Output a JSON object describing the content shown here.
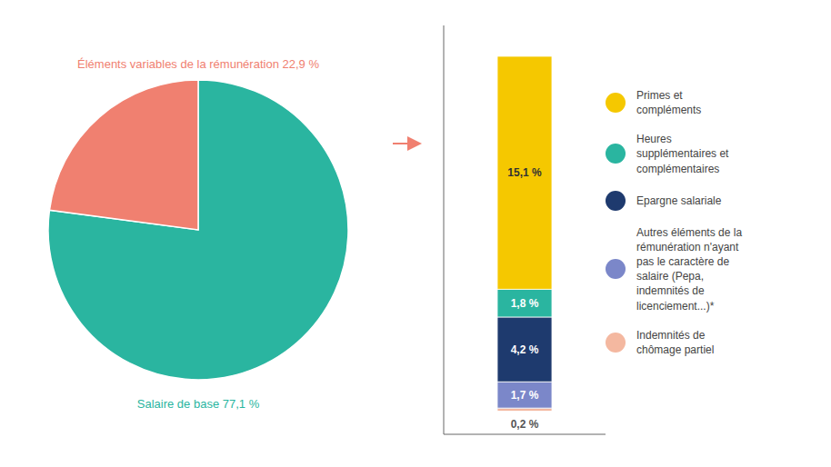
{
  "chart_data": [
    {
      "type": "pie",
      "values": [
        77.1,
        22.9
      ],
      "value_labels": [
        "Salaire de base 77,1 %",
        "Éléments variables de la rémunération 22,9 %"
      ],
      "colors": [
        "#2ab5a0",
        "#f08070"
      ],
      "data_labels": true
    },
    {
      "type": "bar",
      "stacked": true,
      "categories": [
        null
      ],
      "series": [
        {
          "name": "Primes et\ncompléments",
          "color": "#f5c800",
          "values": [
            15.1
          ],
          "value_labels": [
            "15,1 %"
          ]
        },
        {
          "name": "Heures\nsupplémentaires et\ncomplémentaires",
          "color": "#2ab5a0",
          "values": [
            1.8
          ],
          "value_labels": [
            "1,8 %"
          ]
        },
        {
          "name": "Epargne salariale",
          "color": "#1e3a6e",
          "values": [
            4.2
          ],
          "value_labels": [
            "4,2 %"
          ]
        },
        {
          "name": "Autres éléments de la\nrémunération n'ayant\npas le caractère de\nsalaire (Pepa,\nindemnités de\nlicenciement...)*",
          "color": "#7b87c9",
          "values": [
            1.7
          ],
          "value_labels": [
            "1,7 %"
          ]
        },
        {
          "name": "Indemnités de\nchômage partiel",
          "color": "#f4b8a0",
          "values": [
            0.2
          ],
          "value_labels": [
            "0,2 %"
          ]
        }
      ],
      "ylim": [
        -1.5,
        25
      ],
      "tick_labels": false,
      "data_labels": true,
      "legend": "right"
    }
  ]
}
